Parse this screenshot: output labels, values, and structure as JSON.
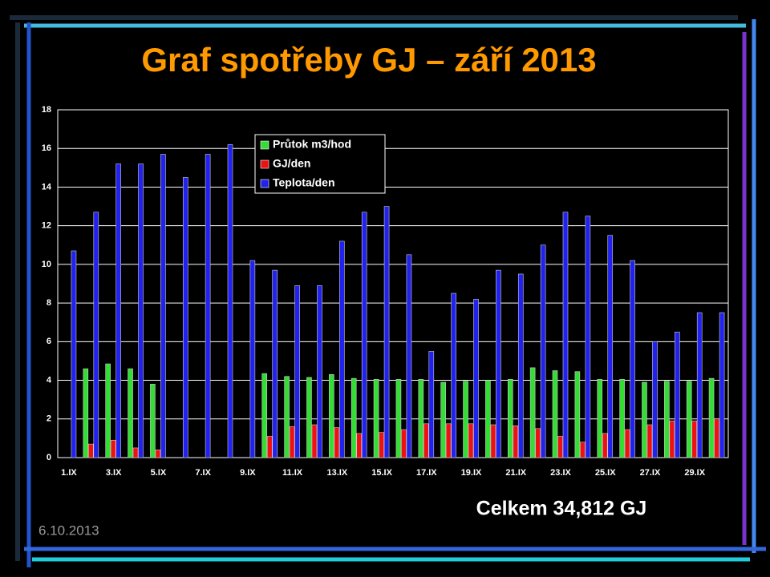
{
  "chart_data": {
    "type": "bar",
    "title": "Graf spotřeby GJ – září 2013",
    "annotation": "Celkem 34,812 GJ",
    "date": "6.10.2013",
    "categories": [
      "1.IX",
      null,
      "3.IX",
      null,
      "5.IX",
      null,
      "7.IX",
      null,
      "9.IX",
      null,
      "11.IX",
      null,
      "13.IX",
      null,
      "15.IX",
      null,
      "17.IX",
      null,
      "19.IX",
      null,
      "21.IX",
      null,
      "23.IX",
      null,
      "25.IX",
      null,
      "27.IX",
      null,
      "29.IX",
      null
    ],
    "series": [
      {
        "name": "Průtok m3/hod",
        "color": "#33dd33",
        "values": [
          0,
          4.6,
          4.85,
          4.6,
          3.8,
          0,
          0,
          0,
          0,
          4.35,
          4.2,
          4.15,
          4.3,
          4.1,
          4.05,
          4.05,
          4.05,
          3.9,
          3.95,
          4.0,
          4.05,
          4.65,
          4.5,
          4.45,
          4.05,
          4.05,
          3.9,
          3.95,
          3.95,
          4.1
        ]
      },
      {
        "name": "GJ/den",
        "color": "#ee1111",
        "values": [
          0,
          0.7,
          0.9,
          0.5,
          0.4,
          0,
          0,
          0,
          0,
          1.1,
          1.6,
          1.7,
          1.55,
          1.25,
          1.3,
          1.45,
          1.75,
          1.75,
          1.75,
          1.7,
          1.65,
          1.5,
          1.1,
          0.8,
          1.25,
          1.45,
          1.7,
          1.9,
          1.9,
          2.0
        ]
      },
      {
        "name": "Teplota/den",
        "color": "#2222ee",
        "values": [
          10.7,
          12.7,
          15.2,
          15.2,
          15.7,
          14.5,
          15.7,
          16.2,
          10.2,
          9.7,
          8.9,
          8.9,
          11.2,
          12.7,
          13.0,
          10.5,
          5.5,
          8.5,
          8.2,
          9.7,
          9.5,
          11.0,
          12.7,
          12.5,
          11.5,
          10.2,
          6.0,
          6.5,
          7.5,
          7.5
        ]
      }
    ],
    "ylim": [
      0,
      18
    ],
    "yticks": [
      0,
      2,
      4,
      6,
      8,
      10,
      12,
      14,
      16,
      18
    ],
    "grid": true
  }
}
